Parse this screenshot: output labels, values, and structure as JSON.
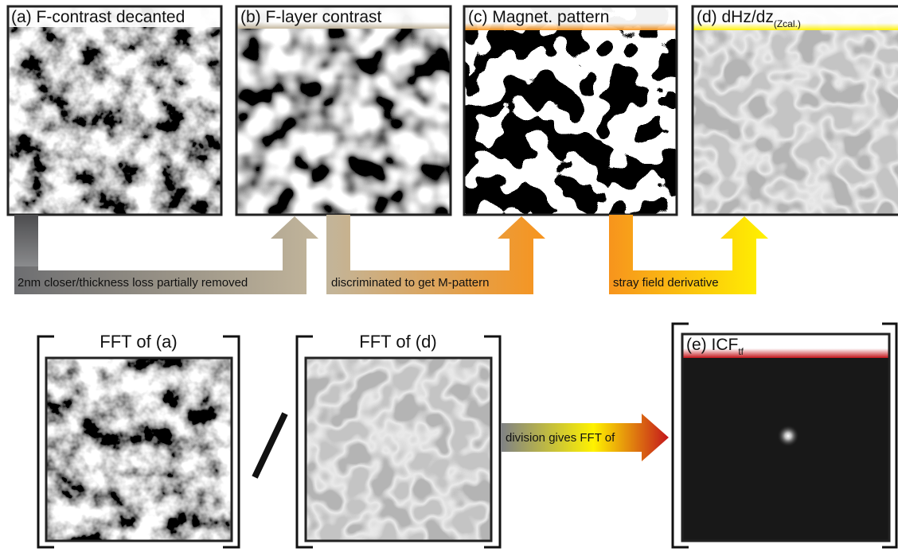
{
  "panels": [
    {
      "label": "(a) F-contrast decanted"
    },
    {
      "label": "(b) F-layer contrast"
    },
    {
      "label": "(c) Magnet. pattern"
    },
    {
      "label": "(d) dHz/dz",
      "subscript": "(Zcal.)"
    }
  ],
  "arrows": [
    "2nm closer/thickness loss partially removed",
    "discriminated to get M-pattern",
    "stray field derivative"
  ],
  "bottom": {
    "left": "FFT of (a)",
    "right": "FFT of (d)",
    "arrow": "division gives FFT of",
    "result": {
      "label": "(e) ICF",
      "subscript": "tf"
    }
  }
}
